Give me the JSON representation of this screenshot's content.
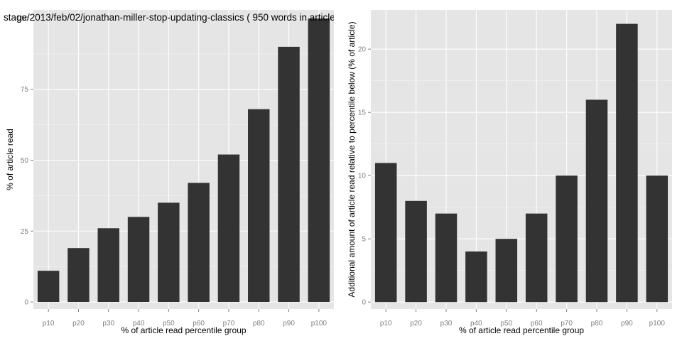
{
  "chart_data": [
    {
      "type": "bar",
      "title": "stage/2013/feb/02/jonathan-miller-stop-updating-classics ( 950 words in article",
      "xlabel": "% of article read percentile group",
      "ylabel": "% of article read",
      "categories": [
        "p10",
        "p20",
        "p30",
        "p40",
        "p50",
        "p60",
        "p70",
        "p80",
        "p90",
        "p100"
      ],
      "values": [
        11,
        19,
        26,
        30,
        35,
        42,
        52,
        68,
        90,
        100
      ],
      "ylim": [
        -2.5,
        103
      ],
      "yticks": [
        0,
        25,
        50,
        75,
        100
      ],
      "grid": true,
      "bar_color": "#333333",
      "panel_color": "#e5e5e5"
    },
    {
      "type": "bar",
      "title": "",
      "xlabel": "% of article read percentile group",
      "ylabel": "Additional amount of article read relative to percentile below (% of article)",
      "categories": [
        "p10",
        "p20",
        "p30",
        "p40",
        "p50",
        "p60",
        "p70",
        "p80",
        "p90",
        "p100"
      ],
      "values": [
        11,
        8,
        7,
        4,
        5,
        7,
        10,
        16,
        22,
        10
      ],
      "ylim": [
        -0.55,
        23.1
      ],
      "yticks": [
        0,
        5,
        10,
        15,
        20
      ],
      "grid": true,
      "bar_color": "#333333",
      "panel_color": "#e5e5e5"
    }
  ]
}
